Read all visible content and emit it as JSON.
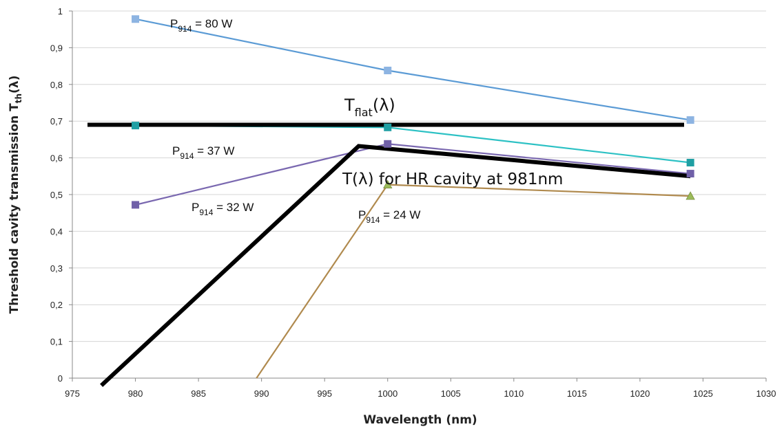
{
  "chart_data": {
    "type": "line",
    "xlabel": "Wavelength (nm)",
    "ylabel_main": "Threshold cavity transmission T",
    "ylabel_sub": "th",
    "ylabel_tail": "(λ)",
    "xlim": [
      975,
      1030
    ],
    "ylim": [
      0,
      1
    ],
    "x_ticks": [
      975,
      980,
      985,
      990,
      995,
      1000,
      1005,
      1010,
      1015,
      1020,
      1025,
      1030
    ],
    "y_ticks": [
      0,
      0.1,
      0.2,
      0.3,
      0.4,
      0.5,
      0.6,
      0.7,
      0.8,
      0.9,
      1
    ],
    "y_tick_labels": [
      "0",
      "0,1",
      "0,2",
      "0,3",
      "0,4",
      "0,5",
      "0,6",
      "0,7",
      "0,8",
      "0,9",
      "1"
    ],
    "grid": "horizontal",
    "series": [
      {
        "label_main": "P",
        "label_sub": "914",
        "label_tail": " = 80 W",
        "color": "#5b9bd5",
        "marker": "square",
        "marker_color": "#8db4e2",
        "points": [
          [
            980,
            0.978
          ],
          [
            1000,
            0.838
          ],
          [
            1024,
            0.703
          ]
        ]
      },
      {
        "label_main": "P",
        "label_sub": "914",
        "label_tail": " = 37 W",
        "color": "#2cc1c4",
        "marker": "square",
        "marker_color": "#1f9fa3",
        "points": [
          [
            980,
            0.688
          ],
          [
            1000,
            0.683
          ],
          [
            1024,
            0.587
          ]
        ]
      },
      {
        "label_main": "P",
        "label_sub": "914",
        "label_tail": " = 32 W",
        "color": "#7a68b0",
        "marker": "square",
        "marker_color": "#7060a8",
        "points": [
          [
            980,
            0.472
          ],
          [
            1000,
            0.638
          ],
          [
            1024,
            0.557
          ]
        ]
      },
      {
        "label_main": "P",
        "label_sub": "914",
        "label_tail": " = 24 W",
        "color": "#b08a4e",
        "marker": "triangle",
        "marker_color": "#9bbb59",
        "points": [
          [
            989.6,
            0.0
          ],
          [
            1000,
            0.527
          ],
          [
            1024,
            0.496
          ]
        ]
      }
    ],
    "curves": [
      {
        "label_main": "T",
        "label_sub": "flat",
        "label_tail": "(λ)",
        "color": "#000000",
        "points": [
          [
            976.2,
            0.69
          ],
          [
            1023.5,
            0.69
          ]
        ]
      },
      {
        "label_main": "T(λ) for HR cavity at 981nm",
        "label_sub": "",
        "label_tail": "",
        "color": "#000000",
        "points": [
          [
            977.3,
            -0.02
          ],
          [
            997.7,
            0.632
          ],
          [
            1024,
            0.55
          ]
        ]
      }
    ]
  }
}
